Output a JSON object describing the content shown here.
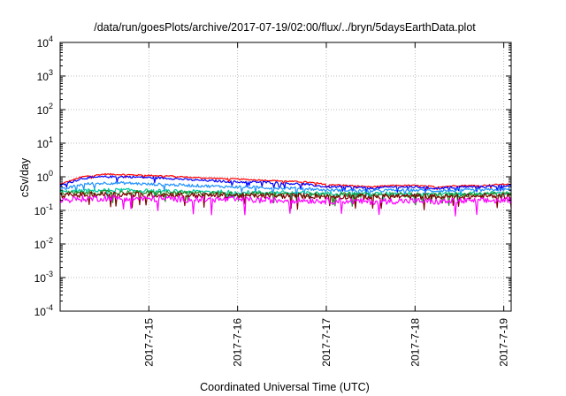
{
  "chart_data": {
    "type": "line",
    "title": "/data/run/goesPlots/archive/2017-07-19/02:00/flux/../bryn/5daysEarthData.plot",
    "xlabel": "Coordinated Universal Time (UTC)",
    "ylabel": "cSv/day",
    "y_scale": "log",
    "ylim": [
      0.0001,
      10000
    ],
    "y_ticks": [
      {
        "value": 0.0001,
        "base": "10",
        "exp": "-4"
      },
      {
        "value": 0.001,
        "base": "10",
        "exp": "-3"
      },
      {
        "value": 0.01,
        "base": "10",
        "exp": "-2"
      },
      {
        "value": 0.1,
        "base": "10",
        "exp": "-1"
      },
      {
        "value": 1,
        "base": "10",
        "exp": "0"
      },
      {
        "value": 10,
        "base": "10",
        "exp": "1"
      },
      {
        "value": 100,
        "base": "10",
        "exp": "2"
      },
      {
        "value": 1000,
        "base": "10",
        "exp": "3"
      },
      {
        "value": 10000,
        "base": "10",
        "exp": "4"
      }
    ],
    "x_type": "date",
    "xlim": [
      "2017-07-14T00:00",
      "2017-07-19T02:00"
    ],
    "x_ticks": [
      "2017-7-15",
      "2017-7-16",
      "2017-7-17",
      "2017-7-18",
      "2017-7-19"
    ],
    "x_tick_values": [
      "2017-07-15T00:00",
      "2017-07-16T00:00",
      "2017-07-17T00:00",
      "2017-07-18T00:00",
      "2017-07-19T00:00"
    ],
    "grid": true,
    "x": [
      "2017-07-14T00:00",
      "2017-07-14T06:00",
      "2017-07-14T12:00",
      "2017-07-14T18:00",
      "2017-07-15T00:00",
      "2017-07-15T06:00",
      "2017-07-15T12:00",
      "2017-07-15T18:00",
      "2017-07-16T00:00",
      "2017-07-16T06:00",
      "2017-07-16T12:00",
      "2017-07-16T18:00",
      "2017-07-17T00:00",
      "2017-07-17T06:00",
      "2017-07-17T12:00",
      "2017-07-17T18:00",
      "2017-07-18T00:00",
      "2017-07-18T06:00",
      "2017-07-18T12:00",
      "2017-07-18T18:00",
      "2017-07-19T00:00",
      "2017-07-19T02:00"
    ],
    "series": [
      {
        "color": "#ff0000",
        "values": [
          0.6,
          1.0,
          1.2,
          1.15,
          1.1,
          1.05,
          0.95,
          0.9,
          0.85,
          0.8,
          0.75,
          0.7,
          0.6,
          0.55,
          0.5,
          0.55,
          0.55,
          0.5,
          0.55,
          0.55,
          0.6,
          0.6
        ]
      },
      {
        "color": "#0000ff",
        "values": [
          0.55,
          0.9,
          1.0,
          1.0,
          0.95,
          0.9,
          0.8,
          0.75,
          0.7,
          0.7,
          0.65,
          0.6,
          0.5,
          0.5,
          0.45,
          0.5,
          0.5,
          0.45,
          0.5,
          0.5,
          0.55,
          0.55
        ]
      },
      {
        "color": "#1e90ff",
        "values": [
          0.4,
          0.6,
          0.65,
          0.65,
          0.6,
          0.58,
          0.55,
          0.52,
          0.5,
          0.48,
          0.46,
          0.45,
          0.4,
          0.4,
          0.38,
          0.4,
          0.4,
          0.38,
          0.4,
          0.4,
          0.42,
          0.42
        ]
      },
      {
        "color": "#00c8a0",
        "values": [
          0.35,
          0.38,
          0.4,
          0.4,
          0.38,
          0.37,
          0.36,
          0.36,
          0.35,
          0.34,
          0.34,
          0.33,
          0.32,
          0.32,
          0.31,
          0.32,
          0.32,
          0.31,
          0.32,
          0.32,
          0.33,
          0.33
        ]
      },
      {
        "color": "#228b22",
        "values": [
          0.32,
          0.33,
          0.34,
          0.34,
          0.33,
          0.33,
          0.32,
          0.32,
          0.31,
          0.31,
          0.3,
          0.3,
          0.29,
          0.29,
          0.28,
          0.29,
          0.29,
          0.28,
          0.29,
          0.29,
          0.3,
          0.3
        ]
      },
      {
        "color": "#800000",
        "values": [
          0.28,
          0.29,
          0.3,
          0.3,
          0.29,
          0.29,
          0.28,
          0.28,
          0.28,
          0.27,
          0.27,
          0.27,
          0.26,
          0.26,
          0.25,
          0.26,
          0.26,
          0.25,
          0.26,
          0.26,
          0.27,
          0.27
        ]
      },
      {
        "color": "#ff00ff",
        "values": [
          0.2,
          0.22,
          0.23,
          0.23,
          0.22,
          0.22,
          0.21,
          0.21,
          0.21,
          0.2,
          0.2,
          0.2,
          0.19,
          0.19,
          0.18,
          0.19,
          0.19,
          0.18,
          0.19,
          0.19,
          0.2,
          0.2
        ]
      }
    ]
  }
}
